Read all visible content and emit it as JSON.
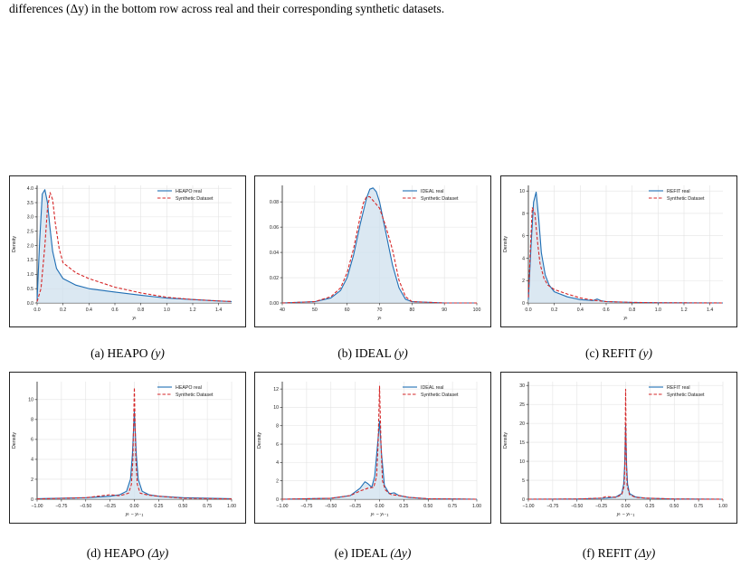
{
  "intro_text": "differences (Δy) in the bottom row across real and their corresponding synthetic datasets.",
  "colors": {
    "real": "#1f6eb4",
    "synthetic": "#d62728",
    "fill": "#cfe0ee",
    "grid": "#e3e3e3"
  },
  "chart_data": [
    {
      "type": "line",
      "caption_label": "(a) HEAPO",
      "caption_var": "(y)",
      "xlabel": "yₜ",
      "ylabel": "Density",
      "xlim": [
        0.0,
        1.5
      ],
      "ylim": [
        0,
        4.1
      ],
      "xticks": [
        0.0,
        0.2,
        0.4,
        0.6,
        0.8,
        1.0,
        1.2,
        1.4
      ],
      "xtick_labels": [
        "0.0",
        "0.2",
        "0.4",
        "0.6",
        "0.8",
        "1.0",
        "1.2",
        "1.4"
      ],
      "yticks": [
        0.0,
        0.5,
        1.0,
        1.5,
        2.0,
        2.5,
        3.0,
        3.5,
        4.0
      ],
      "ytick_labels": [
        "0.0",
        "0.5",
        "1.0",
        "1.5",
        "2.0",
        "2.5",
        "3.0",
        "3.5",
        "4.0"
      ],
      "legend_position": "top-right",
      "series": [
        {
          "name": "HEAPO real",
          "style": "solid",
          "x": [
            0.0,
            0.02,
            0.04,
            0.06,
            0.08,
            0.1,
            0.12,
            0.15,
            0.2,
            0.3,
            0.4,
            0.6,
            0.8,
            1.0,
            1.2,
            1.4,
            1.5
          ],
          "y": [
            0.1,
            2.2,
            3.8,
            3.95,
            3.5,
            2.6,
            1.8,
            1.2,
            0.85,
            0.62,
            0.5,
            0.38,
            0.27,
            0.17,
            0.12,
            0.07,
            0.05
          ]
        },
        {
          "name": "Synthetic Dataset",
          "style": "dashed",
          "x": [
            0.0,
            0.03,
            0.06,
            0.08,
            0.1,
            0.12,
            0.14,
            0.17,
            0.2,
            0.3,
            0.4,
            0.6,
            0.8,
            1.0,
            1.2,
            1.4,
            1.5
          ],
          "y": [
            0.05,
            0.5,
            2.0,
            3.3,
            3.85,
            3.6,
            2.8,
            1.9,
            1.4,
            1.05,
            0.85,
            0.55,
            0.35,
            0.2,
            0.12,
            0.07,
            0.05
          ]
        }
      ]
    },
    {
      "type": "line",
      "caption_label": "(b) IDEAL",
      "caption_var": "(y)",
      "xlabel": "yₜ",
      "ylabel": "",
      "xlim": [
        40,
        100
      ],
      "ylim": [
        0,
        0.093
      ],
      "xticks": [
        40,
        50,
        60,
        70,
        80,
        90,
        100
      ],
      "xtick_labels": [
        "40",
        "50",
        "60",
        "70",
        "80",
        "90",
        "100"
      ],
      "yticks": [
        0.0,
        0.02,
        0.04,
        0.06,
        0.08
      ],
      "ytick_labels": [
        "0.00",
        "0.02",
        "0.04",
        "0.06",
        "0.08"
      ],
      "legend_position": "top-right",
      "series": [
        {
          "name": "IDEAL real",
          "style": "solid",
          "x": [
            40,
            50,
            55,
            58,
            60,
            62,
            64,
            66,
            67,
            68,
            69,
            70,
            72,
            74,
            76,
            78,
            80,
            90,
            100
          ],
          "y": [
            0.0,
            0.001,
            0.004,
            0.01,
            0.02,
            0.038,
            0.062,
            0.083,
            0.09,
            0.091,
            0.088,
            0.08,
            0.055,
            0.03,
            0.012,
            0.003,
            0.001,
            0.0,
            0.0
          ]
        },
        {
          "name": "Synthetic Dataset",
          "style": "dashed",
          "x": [
            40,
            50,
            55,
            58,
            60,
            62,
            64,
            65,
            66,
            67,
            68,
            70,
            72,
            74,
            76,
            78,
            80,
            90,
            100
          ],
          "y": [
            0.0,
            0.001,
            0.005,
            0.012,
            0.024,
            0.043,
            0.068,
            0.079,
            0.084,
            0.084,
            0.081,
            0.075,
            0.06,
            0.042,
            0.018,
            0.005,
            0.001,
            0.0,
            0.0
          ]
        }
      ]
    },
    {
      "type": "line",
      "caption_label": "(c) REFIT",
      "caption_var": "(y)",
      "xlabel": "yₜ",
      "ylabel": "Density",
      "xlim": [
        0.0,
        1.5
      ],
      "ylim": [
        0,
        10.5
      ],
      "xticks": [
        0.0,
        0.2,
        0.4,
        0.6,
        0.8,
        1.0,
        1.2,
        1.4
      ],
      "xtick_labels": [
        "0.0",
        "0.2",
        "0.4",
        "0.6",
        "0.8",
        "1.0",
        "1.2",
        "1.4"
      ],
      "yticks": [
        0,
        2,
        4,
        6,
        8,
        10
      ],
      "ytick_labels": [
        "0",
        "2",
        "4",
        "6",
        "8",
        "10"
      ],
      "legend_position": "top-right",
      "series": [
        {
          "name": "REFIT real",
          "style": "solid",
          "x": [
            0.0,
            0.02,
            0.04,
            0.06,
            0.08,
            0.1,
            0.13,
            0.16,
            0.2,
            0.3,
            0.4,
            0.5,
            0.53,
            0.56,
            0.6,
            0.8,
            1.0,
            1.5
          ],
          "y": [
            0.3,
            5.0,
            9.0,
            9.9,
            7.5,
            4.5,
            2.5,
            1.6,
            1.0,
            0.55,
            0.3,
            0.22,
            0.35,
            0.2,
            0.12,
            0.05,
            0.02,
            0.0
          ]
        },
        {
          "name": "Synthetic Dataset",
          "style": "dashed",
          "x": [
            0.0,
            0.02,
            0.03,
            0.05,
            0.07,
            0.09,
            0.12,
            0.15,
            0.2,
            0.3,
            0.4,
            0.5,
            0.6,
            0.8,
            1.0,
            1.5
          ],
          "y": [
            0.5,
            6.0,
            8.5,
            8.0,
            5.5,
            3.5,
            2.2,
            1.6,
            1.2,
            0.8,
            0.45,
            0.25,
            0.12,
            0.05,
            0.02,
            0.0
          ]
        }
      ]
    },
    {
      "type": "line",
      "caption_label": "(d) HEAPO",
      "caption_var": "(Δy)",
      "xlabel": "yₜ − yₜ₋₁",
      "ylabel": "Density",
      "xlim": [
        -1.0,
        1.0
      ],
      "ylim": [
        0,
        11.8
      ],
      "xticks": [
        -1.0,
        -0.75,
        -0.5,
        -0.25,
        0.0,
        0.25,
        0.5,
        0.75,
        1.0
      ],
      "xtick_labels": [
        "−1.00",
        "−0.75",
        "−0.50",
        "−0.25",
        "0.00",
        "0.25",
        "0.50",
        "0.75",
        "1.00"
      ],
      "yticks": [
        0,
        2,
        4,
        6,
        8,
        10
      ],
      "ytick_labels": [
        "0",
        "2",
        "4",
        "6",
        "8",
        "10"
      ],
      "legend_position": "top-right",
      "series": [
        {
          "name": "HEAPO real",
          "style": "solid",
          "x": [
            -1.0,
            -0.5,
            -0.25,
            -0.15,
            -0.08,
            -0.04,
            -0.02,
            0.0,
            0.02,
            0.04,
            0.08,
            0.15,
            0.25,
            0.5,
            1.0
          ],
          "y": [
            0.05,
            0.15,
            0.3,
            0.45,
            0.8,
            2.0,
            4.5,
            8.8,
            4.5,
            2.0,
            0.8,
            0.45,
            0.3,
            0.15,
            0.05
          ]
        },
        {
          "name": "Synthetic Dataset",
          "style": "dashed",
          "x": [
            -1.0,
            -0.5,
            -0.25,
            -0.15,
            -0.06,
            -0.03,
            -0.015,
            0.0,
            0.015,
            0.03,
            0.06,
            0.15,
            0.25,
            0.5,
            1.0
          ],
          "y": [
            0.03,
            0.15,
            0.45,
            0.35,
            0.6,
            1.5,
            4.0,
            11.2,
            4.0,
            1.5,
            0.6,
            0.4,
            0.3,
            0.1,
            0.03
          ]
        }
      ]
    },
    {
      "type": "line",
      "caption_label": "(e) IDEAL",
      "caption_var": "(Δy)",
      "xlabel": "yₜ − yₜ₋₁",
      "ylabel": "Density",
      "xlim": [
        -1.0,
        1.0
      ],
      "ylim": [
        0,
        12.8
      ],
      "xticks": [
        -1.0,
        -0.75,
        -0.5,
        -0.25,
        0.0,
        0.25,
        0.5,
        0.75,
        1.0
      ],
      "xtick_labels": [
        "−1.00",
        "−0.75",
        "−0.50",
        "−0.25",
        "0.00",
        "0.25",
        "0.50",
        "0.75",
        "1.00"
      ],
      "yticks": [
        0,
        2,
        4,
        6,
        8,
        10,
        12
      ],
      "ytick_labels": [
        "0",
        "2",
        "4",
        "6",
        "8",
        "10",
        "12"
      ],
      "legend_position": "top-right",
      "series": [
        {
          "name": "IDEAL real",
          "style": "solid",
          "x": [
            -1.0,
            -0.5,
            -0.3,
            -0.2,
            -0.15,
            -0.12,
            -0.08,
            -0.05,
            -0.02,
            0.0,
            0.02,
            0.05,
            0.1,
            0.15,
            0.2,
            0.3,
            0.5,
            1.0
          ],
          "y": [
            0.0,
            0.1,
            0.4,
            1.2,
            1.9,
            1.7,
            1.3,
            2.5,
            6.0,
            8.5,
            5.0,
            1.5,
            0.6,
            0.7,
            0.4,
            0.2,
            0.05,
            0.0
          ]
        },
        {
          "name": "Synthetic Dataset",
          "style": "dashed",
          "x": [
            -1.0,
            -0.5,
            -0.3,
            -0.2,
            -0.12,
            -0.06,
            -0.03,
            -0.015,
            0.0,
            0.015,
            0.03,
            0.06,
            0.12,
            0.2,
            0.3,
            0.5,
            1.0
          ],
          "y": [
            0.0,
            0.1,
            0.4,
            0.9,
            1.2,
            1.3,
            2.5,
            6.0,
            12.3,
            6.0,
            2.0,
            1.0,
            0.5,
            0.4,
            0.2,
            0.05,
            0.0
          ]
        }
      ]
    },
    {
      "type": "line",
      "caption_label": "(f) REFIT",
      "caption_var": "(Δy)",
      "xlabel": "yₜ − yₜ₋₁",
      "ylabel": "Density",
      "xlim": [
        -1.0,
        1.0
      ],
      "ylim": [
        0,
        31
      ],
      "xticks": [
        -1.0,
        -0.75,
        -0.5,
        -0.25,
        0.0,
        0.25,
        0.5,
        0.75,
        1.0
      ],
      "xtick_labels": [
        "−1.00",
        "−0.75",
        "−0.50",
        "−0.25",
        "0.00",
        "0.25",
        "0.50",
        "0.75",
        "1.00"
      ],
      "yticks": [
        0,
        5,
        10,
        15,
        20,
        25,
        30
      ],
      "ytick_labels": [
        "0",
        "5",
        "10",
        "15",
        "20",
        "25",
        "30"
      ],
      "legend_position": "top-right",
      "series": [
        {
          "name": "REFIT real",
          "style": "solid",
          "x": [
            -1.0,
            -0.5,
            -0.2,
            -0.1,
            -0.04,
            -0.02,
            -0.01,
            0.0,
            0.01,
            0.02,
            0.04,
            0.1,
            0.2,
            0.5,
            1.0
          ],
          "y": [
            0.0,
            0.05,
            0.3,
            0.6,
            1.5,
            4.0,
            9.0,
            19.5,
            9.0,
            4.0,
            1.5,
            0.6,
            0.3,
            0.05,
            0.0
          ]
        },
        {
          "name": "Synthetic Dataset",
          "style": "dashed",
          "x": [
            -1.0,
            -0.5,
            -0.25,
            -0.2,
            -0.1,
            -0.04,
            -0.015,
            -0.007,
            0.0,
            0.007,
            0.015,
            0.04,
            0.1,
            0.2,
            0.5,
            1.0
          ],
          "y": [
            0.0,
            0.05,
            0.3,
            0.7,
            0.5,
            1.2,
            3.5,
            10.0,
            29.0,
            10.0,
            3.5,
            1.2,
            0.5,
            0.3,
            0.05,
            0.0
          ]
        }
      ]
    }
  ]
}
